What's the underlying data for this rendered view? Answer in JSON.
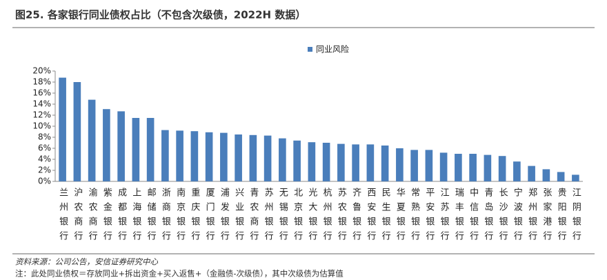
{
  "chart_data": {
    "type": "bar",
    "title": "图25. 各家银行同业债权占比（不包含次级债，2022H 数据）",
    "source": "资料来源：公司公告，安信证券研究中心",
    "note": "注：此处同业债权＝存放同业+拆出资金+买入返售+（金融债-次级债），其中次级债为估算值",
    "categories": [
      "兰州银行",
      "沪农商行",
      "渝农商行",
      "紫金银行",
      "成都银行",
      "上海银行",
      "邮储银行",
      "浙商银行",
      "南京银行",
      "重庆银行",
      "厦门银行",
      "浦发银行",
      "兴业银行",
      "青农商行",
      "苏州银行",
      "无锡银行",
      "北京银行",
      "光大银行",
      "杭州银行",
      "苏农银行",
      "齐鲁银行",
      "西安银行",
      "民生银行",
      "华夏银行",
      "常熟银行",
      "平安银行",
      "江苏银行",
      "瑞丰银行",
      "中信银行",
      "青岛银行",
      "长沙银行",
      "宁波银行",
      "郑州银行",
      "张家港行",
      "贵阳银行",
      "江阴银行"
    ],
    "series": [
      {
        "name": "同业风险",
        "color": "#4a7ebb",
        "values": [
          18.8,
          18.0,
          14.8,
          13.1,
          12.7,
          11.5,
          11.5,
          9.3,
          9.2,
          9.1,
          8.9,
          8.8,
          8.5,
          8.4,
          8.3,
          7.8,
          7.4,
          7.1,
          7.0,
          6.8,
          6.7,
          6.7,
          6.5,
          6.0,
          5.7,
          5.7,
          5.2,
          5.0,
          5.0,
          4.8,
          4.6,
          3.6,
          2.8,
          2.2,
          1.7,
          1.2
        ]
      }
    ],
    "ylim": [
      0,
      20
    ],
    "yticks": [
      {
        "value": 0,
        "label": "0%"
      },
      {
        "value": 2,
        "label": "2%"
      },
      {
        "value": 4,
        "label": "4%"
      },
      {
        "value": 6,
        "label": "6%"
      },
      {
        "value": 8,
        "label": "8%"
      },
      {
        "value": 10,
        "label": "10%"
      },
      {
        "value": 12,
        "label": "12%"
      },
      {
        "value": 14,
        "label": "14%"
      },
      {
        "value": 16,
        "label": "16%"
      },
      {
        "value": 18,
        "label": "18%"
      },
      {
        "value": 20,
        "label": "20%"
      }
    ],
    "legend": "top"
  }
}
